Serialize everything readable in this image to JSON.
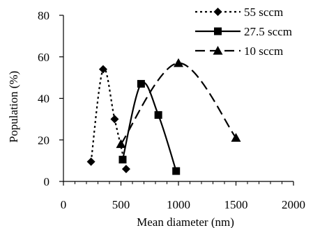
{
  "chart_data": {
    "type": "line",
    "xlabel": "Mean diameter (nm)",
    "ylabel": "Population (%)",
    "xlim": [
      0,
      2000
    ],
    "ylim": [
      0,
      80
    ],
    "xticks": [
      0,
      500,
      1000,
      1500,
      2000
    ],
    "yticks": [
      0,
      20,
      40,
      60,
      80
    ],
    "grid": false,
    "legend_position": "top-right",
    "series": [
      {
        "name": "55 sccm",
        "marker": "diamond",
        "line_style": "dotted",
        "color": "#000000",
        "x": [
          240,
          345,
          445,
          545
        ],
        "y": [
          9.5,
          54,
          30,
          6
        ]
      },
      {
        "name": "27.5 sccm",
        "marker": "square",
        "line_style": "solid",
        "color": "#000000",
        "x": [
          515,
          675,
          825,
          980
        ],
        "y": [
          10.5,
          47,
          32,
          5
        ]
      },
      {
        "name": "10 sccm",
        "marker": "triangle",
        "line_style": "dashed",
        "color": "#000000",
        "x": [
          500,
          1000,
          1500
        ],
        "y": [
          18,
          57,
          21
        ]
      }
    ]
  }
}
